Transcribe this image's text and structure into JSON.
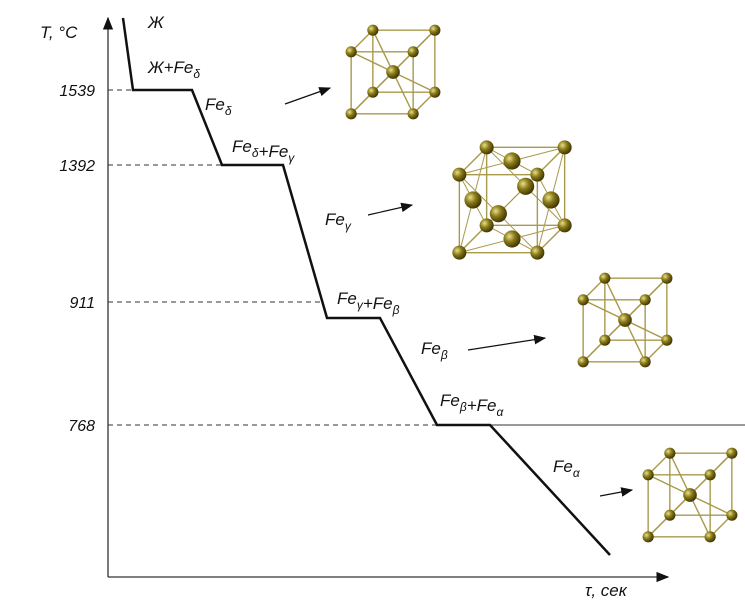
{
  "axes": {
    "y_label": "T, °C",
    "x_label": "τ, сек"
  },
  "temperatures": [
    "1539",
    "1392",
    "911",
    "768"
  ],
  "labels": [
    [
      {
        "t": "Ж"
      }
    ],
    [
      {
        "t": "Ж+Fe",
        "s": "δ"
      }
    ],
    [
      {
        "t": "Fe",
        "s": "δ"
      }
    ],
    [
      {
        "t": "Fe",
        "s": "δ"
      },
      {
        "t": "+Fe",
        "s": "γ"
      }
    ],
    [
      {
        "t": "Fe",
        "s": "γ"
      }
    ],
    [
      {
        "t": "Fe",
        "s": "γ"
      },
      {
        "t": "+Fe",
        "s": "β"
      }
    ],
    [
      {
        "t": "Fe",
        "s": "β"
      }
    ],
    [
      {
        "t": "Fe",
        "s": "β"
      },
      {
        "t": "+Fe",
        "s": "α"
      }
    ],
    [
      {
        "t": "Fe",
        "s": "α"
      }
    ]
  ]
}
